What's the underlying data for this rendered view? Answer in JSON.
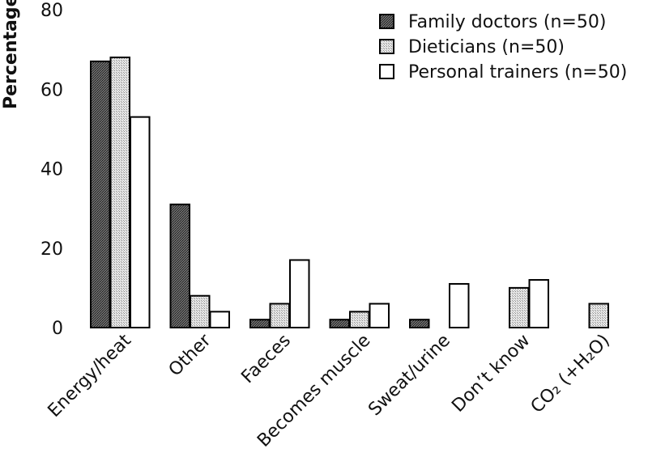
{
  "chart_data": {
    "type": "bar",
    "title": "",
    "xlabel": "",
    "ylabel": "Percentage",
    "ylim": [
      0,
      80
    ],
    "yticks": [
      "0",
      "20",
      "40",
      "60",
      "80"
    ],
    "categories": [
      "Energy/heat",
      "Other",
      "Faeces",
      "Becomes muscle",
      "Sweat/urine",
      "Don’t know",
      "CO₂ (+H₂O)"
    ],
    "series": [
      {
        "name": "Family doctors (n=50)",
        "values": [
          67,
          31,
          2,
          2,
          2,
          0,
          0
        ],
        "color": "#555555"
      },
      {
        "name": "Dieticians (n=50)",
        "values": [
          68,
          8,
          6,
          4,
          0,
          10,
          6
        ],
        "color": "#c8c8c8"
      },
      {
        "name": "Personal trainers (n=50)",
        "values": [
          53,
          4,
          17,
          6,
          11,
          12,
          0
        ],
        "color": "#ffffff"
      }
    ],
    "legend_position": "top-right",
    "grid": false
  }
}
